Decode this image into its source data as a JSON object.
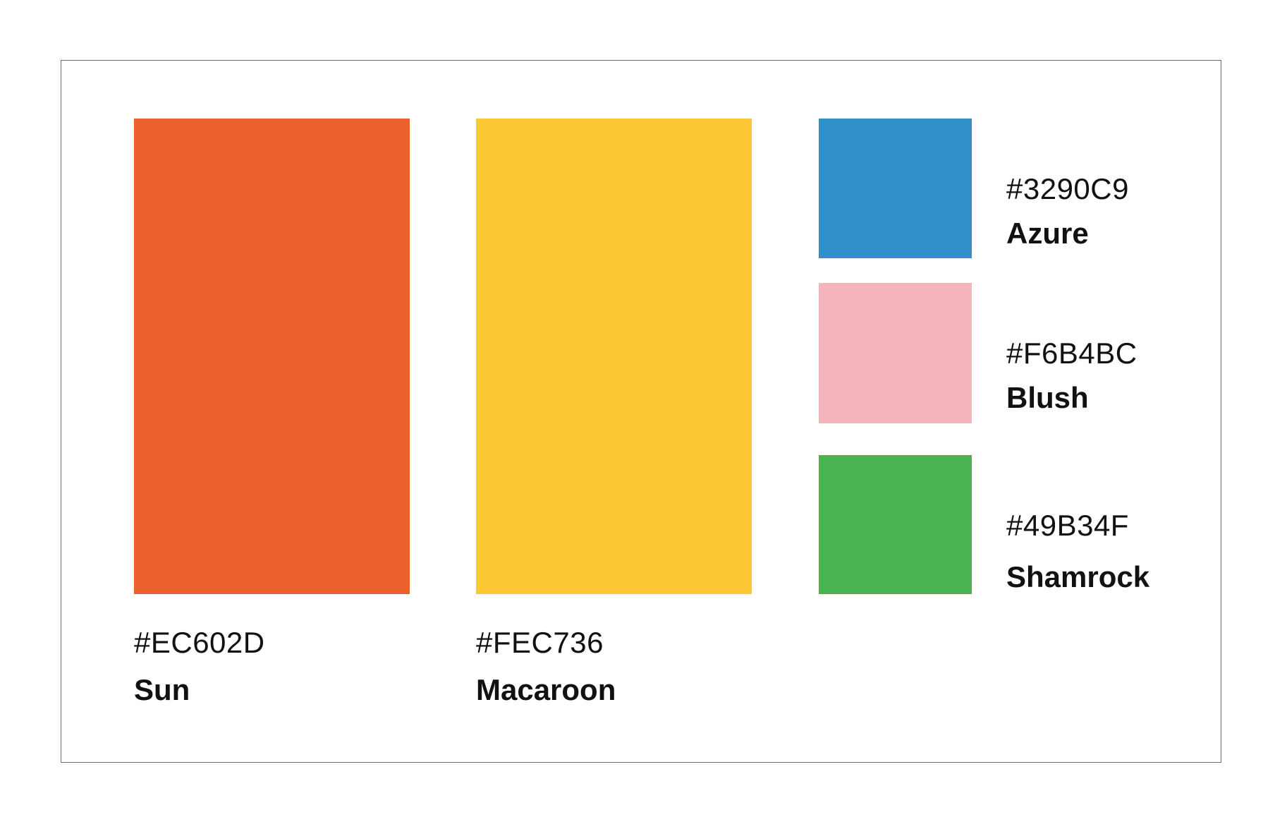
{
  "palette": {
    "swatches": [
      {
        "key": "sun",
        "hex": "#EC602D",
        "name": "Sun",
        "color": "#EC602D"
      },
      {
        "key": "macaroon",
        "hex": "#FEC736",
        "name": "Macaroon",
        "color": "#FEC736"
      },
      {
        "key": "azure",
        "hex": "#3290C9",
        "name": "Azure",
        "color": "#3290C9"
      },
      {
        "key": "blush",
        "hex": "#F6B4BC",
        "name": "Blush",
        "color": "#F6B4BC"
      },
      {
        "key": "shamrock",
        "hex": "#49B34F",
        "name": "Shamrock",
        "color": "#49B34F"
      }
    ],
    "frame_border_color": "#6b6b6b",
    "background_color": "#ffffff"
  }
}
